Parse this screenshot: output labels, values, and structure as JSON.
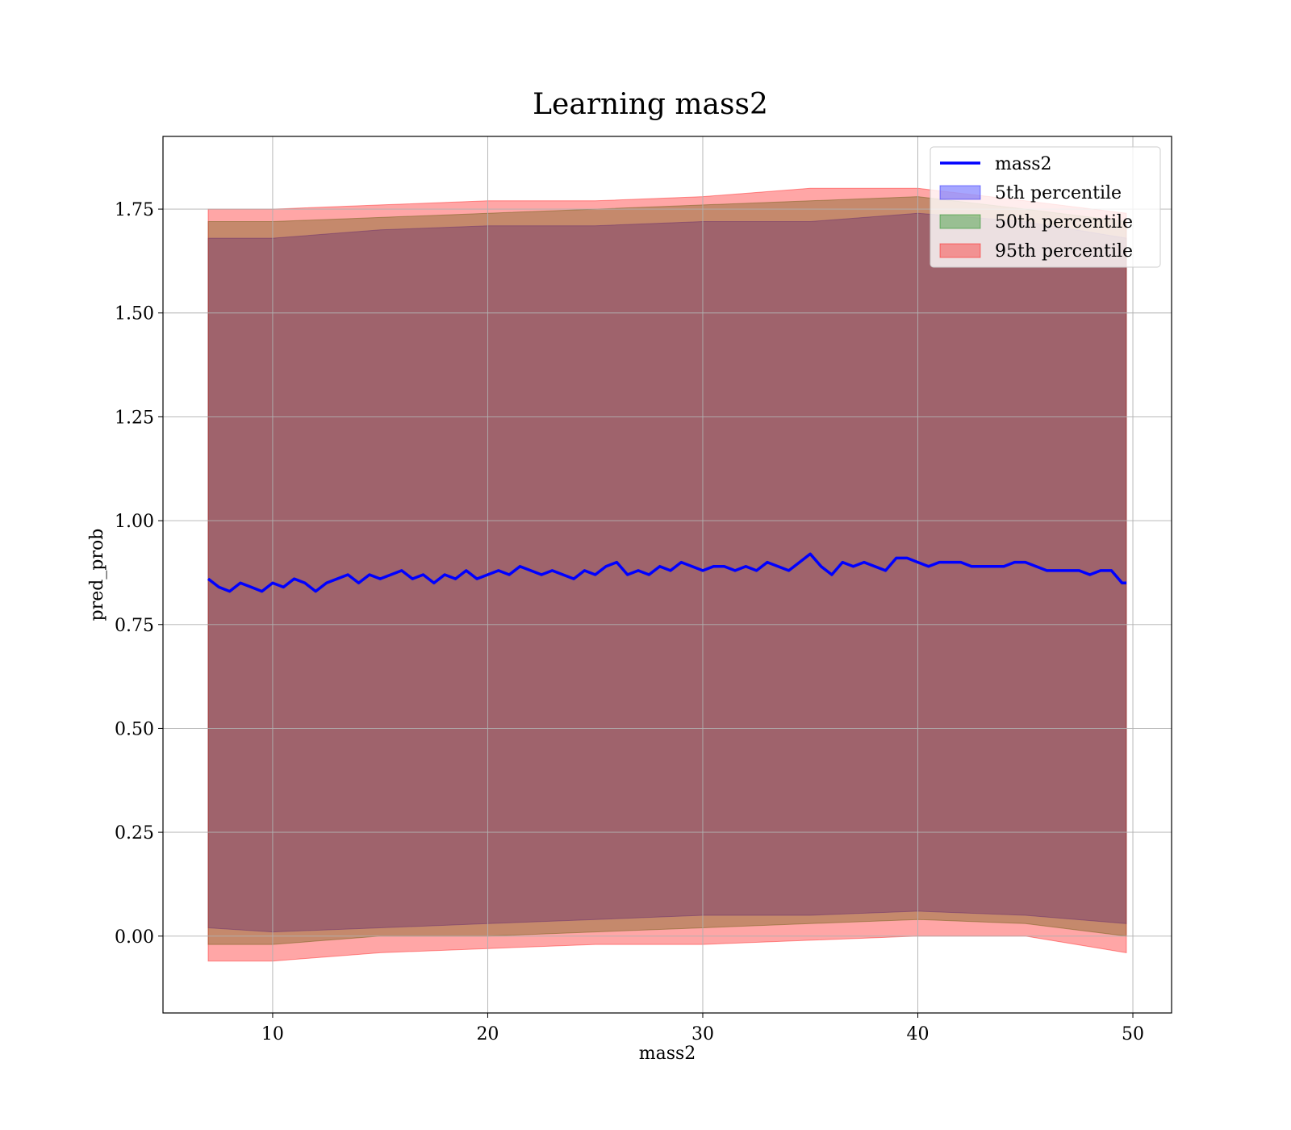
{
  "chart_data": {
    "type": "area",
    "title": "Learning mass2",
    "xlabel": "mass2",
    "ylabel": "pred_prob",
    "xlim": [
      4.9,
      51.8
    ],
    "ylim": [
      -0.185,
      1.925
    ],
    "xticks": [
      10,
      20,
      30,
      40,
      50
    ],
    "yticks": [
      0.0,
      0.25,
      0.5,
      0.75,
      1.0,
      1.25,
      1.5,
      1.75
    ],
    "ytick_labels": [
      "0.00",
      "0.25",
      "0.50",
      "0.75",
      "1.00",
      "1.25",
      "1.50",
      "1.75"
    ],
    "grid": true,
    "legend_position": "top-right",
    "legend": [
      {
        "label": "mass2",
        "kind": "line",
        "color": "#0000ff"
      },
      {
        "label": "5th percentile",
        "kind": "band",
        "color": "#0000ff"
      },
      {
        "label": "50th percentile",
        "kind": "band",
        "color": "#008000"
      },
      {
        "label": "95th percentile",
        "kind": "band",
        "color": "#ff0000"
      }
    ],
    "series": [
      {
        "name": "mass2",
        "kind": "line",
        "color": "#0000ff",
        "x": [
          7.0,
          7.5,
          8.0,
          8.5,
          9.0,
          9.5,
          10.0,
          10.5,
          11.0,
          11.5,
          12.0,
          12.5,
          13.0,
          13.5,
          14.0,
          14.5,
          15.0,
          15.5,
          16.0,
          16.5,
          17.0,
          17.5,
          18.0,
          18.5,
          19.0,
          19.5,
          20.0,
          20.5,
          21.0,
          21.5,
          22.0,
          22.5,
          23.0,
          23.5,
          24.0,
          24.5,
          25.0,
          25.5,
          26.0,
          26.5,
          27.0,
          27.5,
          28.0,
          28.5,
          29.0,
          29.5,
          30.0,
          30.5,
          31.0,
          31.5,
          32.0,
          32.5,
          33.0,
          33.5,
          34.0,
          34.5,
          35.0,
          35.5,
          36.0,
          36.5,
          37.0,
          37.5,
          38.0,
          38.5,
          39.0,
          39.5,
          40.0,
          40.5,
          41.0,
          41.5,
          42.0,
          42.5,
          43.0,
          43.5,
          44.0,
          44.5,
          45.0,
          45.5,
          46.0,
          46.5,
          47.0,
          47.5,
          48.0,
          48.5,
          49.0,
          49.5,
          49.7
        ],
        "y": [
          0.86,
          0.84,
          0.83,
          0.85,
          0.84,
          0.83,
          0.85,
          0.84,
          0.86,
          0.85,
          0.83,
          0.85,
          0.86,
          0.87,
          0.85,
          0.87,
          0.86,
          0.87,
          0.88,
          0.86,
          0.87,
          0.85,
          0.87,
          0.86,
          0.88,
          0.86,
          0.87,
          0.88,
          0.87,
          0.89,
          0.88,
          0.87,
          0.88,
          0.87,
          0.86,
          0.88,
          0.87,
          0.89,
          0.9,
          0.87,
          0.88,
          0.87,
          0.89,
          0.88,
          0.9,
          0.89,
          0.88,
          0.89,
          0.89,
          0.88,
          0.89,
          0.88,
          0.9,
          0.89,
          0.88,
          0.9,
          0.92,
          0.89,
          0.87,
          0.9,
          0.89,
          0.9,
          0.89,
          0.88,
          0.91,
          0.91,
          0.9,
          0.89,
          0.9,
          0.9,
          0.9,
          0.89,
          0.89,
          0.89,
          0.89,
          0.9,
          0.9,
          0.89,
          0.88,
          0.88,
          0.88,
          0.88,
          0.87,
          0.88,
          0.88,
          0.85,
          0.85
        ]
      },
      {
        "name": "5th percentile",
        "kind": "band",
        "color": "#0000ff",
        "x": [
          7.0,
          10.0,
          15.0,
          20.0,
          25.0,
          30.0,
          35.0,
          40.0,
          45.0,
          49.7
        ],
        "upper": [
          1.68,
          1.68,
          1.7,
          1.71,
          1.71,
          1.72,
          1.72,
          1.74,
          1.72,
          1.68
        ],
        "lower": [
          0.02,
          0.01,
          0.02,
          0.03,
          0.04,
          0.05,
          0.05,
          0.06,
          0.05,
          0.03
        ]
      },
      {
        "name": "50th percentile",
        "kind": "band",
        "color": "#008000",
        "x": [
          7.0,
          10.0,
          15.0,
          20.0,
          25.0,
          30.0,
          35.0,
          40.0,
          45.0,
          49.7
        ],
        "upper": [
          1.72,
          1.72,
          1.73,
          1.74,
          1.75,
          1.76,
          1.77,
          1.78,
          1.75,
          1.72
        ],
        "lower": [
          -0.02,
          -0.02,
          0.0,
          0.0,
          0.01,
          0.02,
          0.03,
          0.04,
          0.03,
          0.0
        ]
      },
      {
        "name": "95th percentile",
        "kind": "band",
        "color": "#ff0000",
        "x": [
          7.0,
          10.0,
          15.0,
          20.0,
          25.0,
          30.0,
          35.0,
          40.0,
          45.0,
          49.7
        ],
        "upper": [
          1.75,
          1.75,
          1.76,
          1.77,
          1.77,
          1.78,
          1.8,
          1.8,
          1.77,
          1.74
        ],
        "lower": [
          -0.06,
          -0.06,
          -0.04,
          -0.03,
          -0.02,
          -0.02,
          -0.01,
          0.0,
          0.0,
          -0.04
        ]
      }
    ]
  }
}
